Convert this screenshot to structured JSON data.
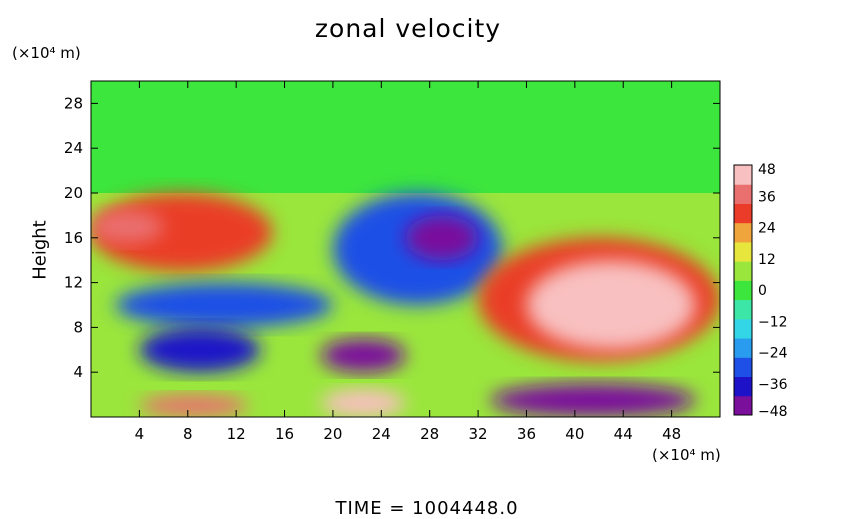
{
  "chart_data": {
    "type": "heatmap",
    "title": "zonal velocity",
    "ylabel": "Height",
    "x_unit_label": "(×10⁴ m)",
    "y_unit_label": "(×10⁴ m)",
    "footer": "TIME  =  1004448.0",
    "xlim": [
      0,
      52
    ],
    "ylim": [
      0,
      30
    ],
    "x_ticks": [
      4,
      8,
      12,
      16,
      20,
      24,
      28,
      32,
      36,
      40,
      44,
      48
    ],
    "y_ticks": [
      4,
      8,
      12,
      16,
      20,
      24,
      28
    ],
    "colorbar": {
      "range": [
        -48,
        48
      ],
      "tick_labels": [
        "48",
        "36",
        "24",
        "12",
        "0",
        "−12",
        "−24",
        "−36",
        "−48"
      ],
      "tick_values": [
        48,
        36,
        24,
        12,
        0,
        -12,
        -24,
        -36,
        -48
      ],
      "colors": [
        "#7a0f9c",
        "#1d12c8",
        "#1e4fe6",
        "#2a9cf0",
        "#33d6e6",
        "#3ce6a6",
        "#3ce63c",
        "#9ae63c",
        "#e6e63c",
        "#f0a53c",
        "#ea3c28",
        "#ea7070",
        "#f8c0c0"
      ]
    },
    "regions": [
      {
        "name": "upper layer",
        "x": [
          0,
          52
        ],
        "y": [
          20,
          30
        ],
        "value": 0
      },
      {
        "name": "base field",
        "x": [
          0,
          52
        ],
        "y": [
          0,
          20
        ],
        "value": 4
      },
      {
        "name": "upper-left jet",
        "x": [
          0,
          15
        ],
        "y": [
          13,
          20
        ],
        "value": 32
      },
      {
        "name": "left warm core",
        "x": [
          0,
          6
        ],
        "y": [
          15.5,
          18.5
        ],
        "value": 40
      },
      {
        "name": "mid-left shear",
        "x": [
          2,
          20
        ],
        "y": [
          8,
          12
        ],
        "value": -28
      },
      {
        "name": "left negative core",
        "x": [
          4,
          14
        ],
        "y": [
          4,
          8
        ],
        "value": -38
      },
      {
        "name": "central negative lobe",
        "x": [
          20,
          34
        ],
        "y": [
          10,
          20
        ],
        "value": -30
      },
      {
        "name": "central negative core",
        "x": [
          26,
          32
        ],
        "y": [
          14,
          18
        ],
        "value": -44
      },
      {
        "name": "lower central core",
        "x": [
          19,
          26
        ],
        "y": [
          4,
          7
        ],
        "value": -48
      },
      {
        "name": "right positive lobe",
        "x": [
          32,
          52
        ],
        "y": [
          5,
          16
        ],
        "value": 30
      },
      {
        "name": "right positive core",
        "x": [
          36,
          50
        ],
        "y": [
          6,
          14
        ],
        "value": 46
      },
      {
        "name": "surface positive left",
        "x": [
          4,
          13
        ],
        "y": [
          0,
          2
        ],
        "value": 40
      },
      {
        "name": "surface positive center",
        "x": [
          19,
          26
        ],
        "y": [
          0,
          2.5
        ],
        "value": 44
      },
      {
        "name": "surface negative right",
        "x": [
          33,
          50
        ],
        "y": [
          0,
          3
        ],
        "value": -44
      }
    ]
  }
}
